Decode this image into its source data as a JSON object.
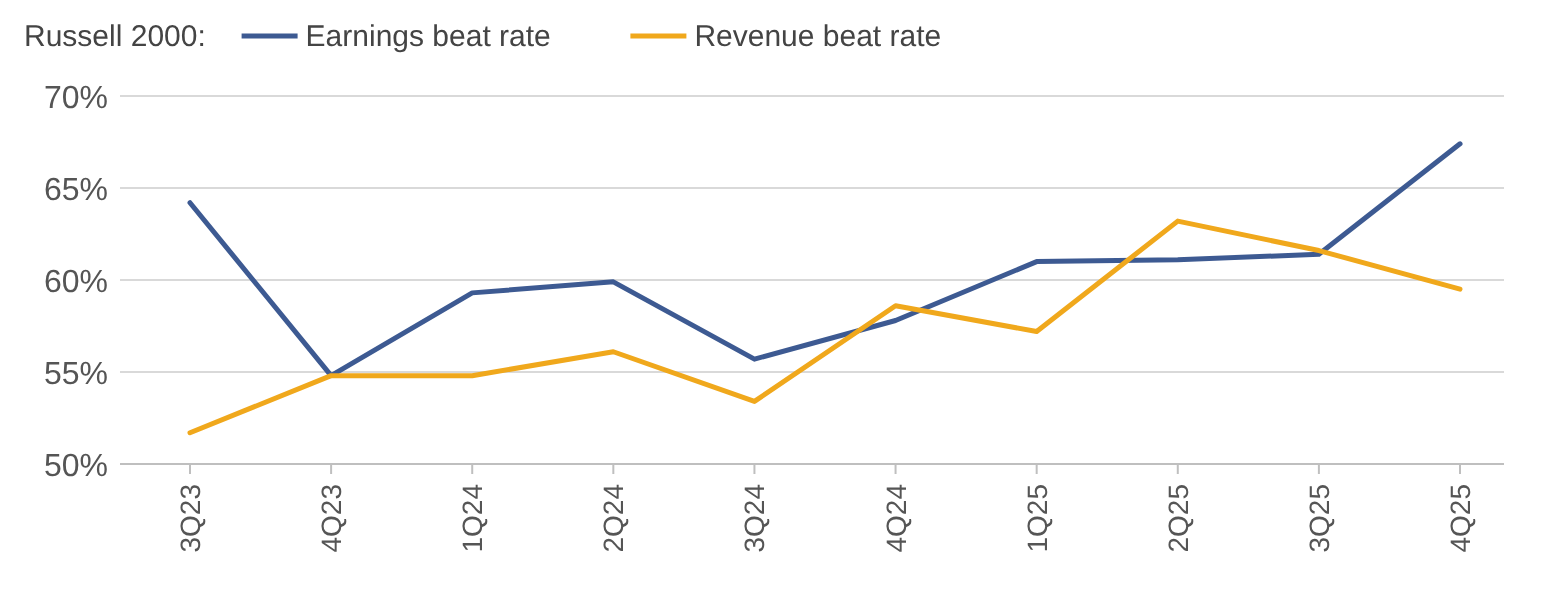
{
  "chart_data": {
    "type": "line",
    "legend_title": "Russell 2000:",
    "categories": [
      "3Q23",
      "4Q23",
      "1Q24",
      "2Q24",
      "3Q24",
      "4Q24",
      "1Q25",
      "2Q25",
      "3Q25",
      "4Q25"
    ],
    "series": [
      {
        "name": "Earnings beat rate",
        "color": "#3d5a92",
        "values": [
          64.2,
          54.8,
          59.3,
          59.9,
          55.7,
          57.8,
          61.0,
          61.1,
          61.4,
          67.4
        ]
      },
      {
        "name": "Revenue beat rate",
        "color": "#f0a81c",
        "values": [
          51.7,
          54.8,
          54.8,
          56.1,
          53.4,
          58.6,
          57.2,
          63.2,
          61.6,
          59.5
        ]
      }
    ],
    "ylim": [
      50,
      70
    ],
    "yticks": [
      {
        "value": 50,
        "label": "50%"
      },
      {
        "value": 55,
        "label": "55%"
      },
      {
        "value": 60,
        "label": "60%"
      },
      {
        "value": 65,
        "label": "65%"
      },
      {
        "value": 70,
        "label": "70%"
      }
    ],
    "grid": "y",
    "legend": "top left",
    "marker": "none",
    "line_style": "solid"
  }
}
